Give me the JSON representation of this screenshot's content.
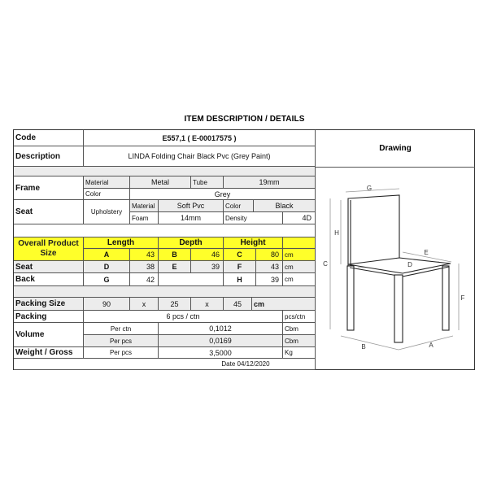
{
  "title": "ITEM DESCRIPTION / DETAILS",
  "code": {
    "label": "Code",
    "value": "E557,1  ( E-00017575 )"
  },
  "description": {
    "label": "Description",
    "value": "LINDA Folding Chair Black Pvc (Grey Paint)"
  },
  "frame": {
    "label": "Frame",
    "material_label": "Material",
    "material": "Metal",
    "tube_label": "Tube",
    "tube": "19mm",
    "color_label": "Color",
    "color": "Grey"
  },
  "seat_spec": {
    "label": "Seat",
    "upholstery_label": "Upholstery",
    "material_label": "Material",
    "material": "Soft Pvc",
    "color_label": "Color",
    "color": "Black",
    "foam_label": "Foam",
    "foam": "14mm",
    "density_label": "Density",
    "density": "4D"
  },
  "size": {
    "label": "Overall Product Size",
    "length": "Length",
    "depth": "Depth",
    "height": "Height",
    "overall": [
      "A",
      "43",
      "B",
      "46",
      "C",
      "80",
      "cm"
    ],
    "seat": {
      "label": "Seat",
      "values": [
        "D",
        "38",
        "E",
        "39",
        "F",
        "43",
        "cm"
      ]
    },
    "back": {
      "label": "Back",
      "values": [
        "G",
        "42",
        "",
        "",
        "H",
        "39",
        "cm"
      ]
    }
  },
  "packing_size": {
    "label": "Packing Size",
    "values": [
      "90",
      "x",
      "25",
      "x",
      "45",
      "cm"
    ]
  },
  "packing": {
    "label": "Packing",
    "value": "6 pcs / ctn",
    "unit": "pcs/ctn"
  },
  "volume": {
    "label": "Volume",
    "per_ctn_label": "Per ctn",
    "per_ctn": "0,1012",
    "per_pcs_label": "Per pcs",
    "per_pcs": "0,0169",
    "unit": "Cbm"
  },
  "weight": {
    "label": "Weight / Gross",
    "per_label": "Per pcs",
    "value": "3,5000",
    "unit": "Kg"
  },
  "date": "Date 04/12/2020",
  "drawing": {
    "label": "Drawing",
    "dims": [
      "A",
      "B",
      "C",
      "D",
      "E",
      "F",
      "G",
      "H"
    ]
  },
  "colors": {
    "highlight": "#ffff2a",
    "border": "#333333"
  }
}
